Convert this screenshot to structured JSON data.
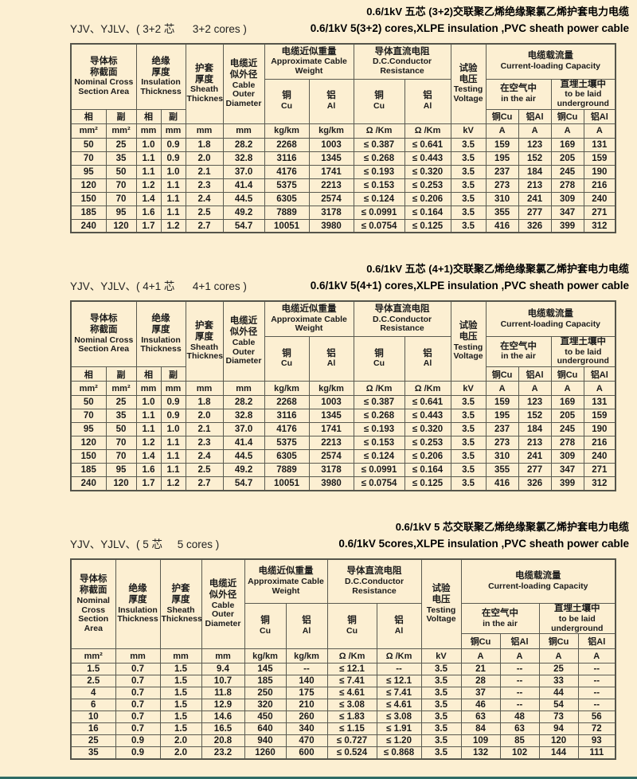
{
  "page": {
    "background": "#fcefd2",
    "bottom_bar_color": "#2e6b64"
  },
  "tables": [
    {
      "kind": "split",
      "title_cn": "0.6/1kV 五芯 (3+2)交联聚乙烯绝缘聚氯乙烯护套电力电缆",
      "title_en": "0.6/1kV 5(3+2) cores,XLPE insulation ,PVC sheath power cable",
      "model_label": "YJV、YJLV、( 3+2 芯      3+2 cores )",
      "header": {
        "ncsa_cn": "导体标\n称截面",
        "ncsa_en": "Nominal Cross Section Area",
        "phase": "相",
        "aux": "副",
        "insulation_cn": "绝缘\n厚度",
        "insulation_en": "Insulation Thickness",
        "sheath_cn": "护套\n厚度",
        "sheath_en": "Sheath Thickness",
        "outer_cn": "电缆近\n似外径",
        "outer_en": "Cable Outer Diameter",
        "weight_cn": "电缆近似重量",
        "weight_en": "Approximate Cable Weight",
        "resistance_cn": "导体直流电阻",
        "resistance_en": "D.C.Conductor Resistance",
        "testing_cn": "试验\n电压",
        "testing_en": "Testing Voltage",
        "capacity_cn": "电缆载流量",
        "capacity_en": "Current-loading Capacity",
        "air_cn": "在空气中",
        "air_en": "in the air",
        "underground_cn": "直埋土壤中",
        "underground_en": "to be laid underground",
        "cu_cn": "铜",
        "cu_en": "Cu",
        "al_cn": "铝",
        "al_en": "Al",
        "cu_inline": "铜Cu",
        "al_inline": "铝Al"
      },
      "units": [
        "mm²",
        "mm²",
        "mm",
        "mm",
        "mm",
        "mm",
        "kg/km",
        "kg/km",
        "Ω /Km",
        "Ω /Km",
        "kV",
        "A",
        "A",
        "A",
        "A"
      ],
      "rows": [
        [
          "50",
          "25",
          "1.0",
          "0.9",
          "1.8",
          "28.2",
          "2268",
          "1003",
          "≤ 0.387",
          "≤ 0.641",
          "3.5",
          "159",
          "123",
          "169",
          "131"
        ],
        [
          "70",
          "35",
          "1.1",
          "0.9",
          "2.0",
          "32.8",
          "3116",
          "1345",
          "≤ 0.268",
          "≤ 0.443",
          "3.5",
          "195",
          "152",
          "205",
          "159"
        ],
        [
          "95",
          "50",
          "1.1",
          "1.0",
          "2.1",
          "37.0",
          "4176",
          "1741",
          "≤ 0.193",
          "≤ 0.320",
          "3.5",
          "237",
          "184",
          "245",
          "190"
        ],
        [
          "120",
          "70",
          "1.2",
          "1.1",
          "2.3",
          "41.4",
          "5375",
          "2213",
          "≤ 0.153",
          "≤ 0.253",
          "3.5",
          "273",
          "213",
          "278",
          "216"
        ],
        [
          "150",
          "70",
          "1.4",
          "1.1",
          "2.4",
          "44.5",
          "6305",
          "2574",
          "≤ 0.124",
          "≤ 0.206",
          "3.5",
          "310",
          "241",
          "309",
          "240"
        ],
        [
          "185",
          "95",
          "1.6",
          "1.1",
          "2.5",
          "49.2",
          "7889",
          "3178",
          "≤ 0.0991",
          "≤ 0.164",
          "3.5",
          "355",
          "277",
          "347",
          "271"
        ],
        [
          "240",
          "120",
          "1.7",
          "1.2",
          "2.7",
          "54.7",
          "10051",
          "3980",
          "≤ 0.0754",
          "≤ 0.125",
          "3.5",
          "416",
          "326",
          "399",
          "312"
        ]
      ]
    },
    {
      "kind": "split",
      "title_cn": "0.6/1kV 五芯 (4+1)交联聚乙烯绝缘聚氯乙烯护套电力电缆",
      "title_en": "0.6/1kV 5(4+1) cores,XLPE insulation ,PVC sheath power cable",
      "model_label": "YJV、YJLV、( 4+1 芯      4+1 cores )",
      "header": {
        "ncsa_cn": "导体标\n称截面",
        "ncsa_en": "Nominal Cross Section Area",
        "phase": "相",
        "aux": "副",
        "insulation_cn": "绝缘\n厚度",
        "insulation_en": "Insulation Thickness",
        "sheath_cn": "护套\n厚度",
        "sheath_en": "Sheath Thickness",
        "outer_cn": "电缆近\n似外径",
        "outer_en": "Cable Outer Diameter",
        "weight_cn": "电缆近似重量",
        "weight_en": "Approximate Cable Weight",
        "resistance_cn": "导体直流电阻",
        "resistance_en": "D.C.Conductor Resistance",
        "testing_cn": "试验\n电压",
        "testing_en": "Testing Voltage",
        "capacity_cn": "电缆载流量",
        "capacity_en": "Current-loading Capacity",
        "air_cn": "在空气中",
        "air_en": "in the air",
        "underground_cn": "直埋土壤中",
        "underground_en": "to be laid underground",
        "cu_cn": "铜",
        "cu_en": "Cu",
        "al_cn": "铝",
        "al_en": "Al",
        "cu_inline": "铜Cu",
        "al_inline": "铝Al"
      },
      "units": [
        "mm²",
        "mm²",
        "mm",
        "mm",
        "mm",
        "mm",
        "kg/km",
        "kg/km",
        "Ω /Km",
        "Ω /Km",
        "kV",
        "A",
        "A",
        "A",
        "A"
      ],
      "rows": [
        [
          "50",
          "25",
          "1.0",
          "0.9",
          "1.8",
          "28.2",
          "2268",
          "1003",
          "≤ 0.387",
          "≤ 0.641",
          "3.5",
          "159",
          "123",
          "169",
          "131"
        ],
        [
          "70",
          "35",
          "1.1",
          "0.9",
          "2.0",
          "32.8",
          "3116",
          "1345",
          "≤ 0.268",
          "≤ 0.443",
          "3.5",
          "195",
          "152",
          "205",
          "159"
        ],
        [
          "95",
          "50",
          "1.1",
          "1.0",
          "2.1",
          "37.0",
          "4176",
          "1741",
          "≤ 0.193",
          "≤ 0.320",
          "3.5",
          "237",
          "184",
          "245",
          "190"
        ],
        [
          "120",
          "70",
          "1.2",
          "1.1",
          "2.3",
          "41.4",
          "5375",
          "2213",
          "≤ 0.153",
          "≤ 0.253",
          "3.5",
          "273",
          "213",
          "278",
          "216"
        ],
        [
          "150",
          "70",
          "1.4",
          "1.1",
          "2.4",
          "44.5",
          "6305",
          "2574",
          "≤ 0.124",
          "≤ 0.206",
          "3.5",
          "310",
          "241",
          "309",
          "240"
        ],
        [
          "185",
          "95",
          "1.6",
          "1.1",
          "2.5",
          "49.2",
          "7889",
          "3178",
          "≤ 0.0991",
          "≤ 0.164",
          "3.5",
          "355",
          "277",
          "347",
          "271"
        ],
        [
          "240",
          "120",
          "1.7",
          "1.2",
          "2.7",
          "54.7",
          "10051",
          "3980",
          "≤ 0.0754",
          "≤ 0.125",
          "3.5",
          "416",
          "326",
          "399",
          "312"
        ]
      ]
    },
    {
      "kind": "plain",
      "title_cn": "0.6/1kV 5 芯交联聚乙烯绝缘聚氯乙烯护套电力电缆",
      "title_en": "0.6/1kV 5cores,XLPE insulation ,PVC sheath power cable",
      "model_label": "YJV、YJLV、( 5 芯     5 cores )",
      "header": {
        "ncsa_cn": "导体标\n称截面",
        "ncsa_en": "Nominal Cross Section Area",
        "insulation_cn": "绝缘\n厚度",
        "insulation_en": "Insulation Thickness",
        "sheath_cn": "护套\n厚度",
        "sheath_en": "Sheath Thickness",
        "outer_cn": "电缆近\n似外径",
        "outer_en": "Cable Outer Diameter",
        "weight_cn": "电缆近似重量",
        "weight_en": "Approximate Cable Weight",
        "resistance_cn": "导体直流电阻",
        "resistance_en": "D.C.Conductor Resistance",
        "testing_cn": "试验\n电压",
        "testing_en": "Testing Voltage",
        "capacity_cn": "电缆载流量",
        "capacity_en": "Current-loading Capacity",
        "air_cn": "在空气中",
        "air_en": "in the air",
        "underground_cn": "直埋土壤中",
        "underground_en": "to be laid underground",
        "cu_cn": "铜",
        "cu_en": "Cu",
        "al_cn": "铝",
        "al_en": "Al",
        "cu_inline": "铜Cu",
        "al_inline": "铝Al"
      },
      "units": [
        "mm²",
        "mm",
        "mm",
        "mm",
        "kg/km",
        "kg/km",
        "Ω /Km",
        "Ω /Km",
        "kV",
        "A",
        "A",
        "A",
        "A"
      ],
      "rows": [
        [
          "1.5",
          "0.7",
          "1.5",
          "9.4",
          "145",
          "--",
          "≤ 12.1",
          "--",
          "3.5",
          "21",
          "--",
          "25",
          "--"
        ],
        [
          "2.5",
          "0.7",
          "1.5",
          "10.7",
          "185",
          "140",
          "≤ 7.41",
          "≤ 12.1",
          "3.5",
          "28",
          "--",
          "33",
          "--"
        ],
        [
          "4",
          "0.7",
          "1.5",
          "11.8",
          "250",
          "175",
          "≤ 4.61",
          "≤ 7.41",
          "3.5",
          "37",
          "--",
          "44",
          "--"
        ],
        [
          "6",
          "0.7",
          "1.5",
          "12.9",
          "320",
          "210",
          "≤ 3.08",
          "≤ 4.61",
          "3.5",
          "46",
          "--",
          "54",
          "--"
        ],
        [
          "10",
          "0.7",
          "1.5",
          "14.6",
          "450",
          "260",
          "≤ 1.83",
          "≤ 3.08",
          "3.5",
          "63",
          "48",
          "73",
          "56"
        ],
        [
          "16",
          "0.7",
          "1.5",
          "16.5",
          "640",
          "340",
          "≤ 1.15",
          "≤ 1.91",
          "3.5",
          "84",
          "63",
          "94",
          "72"
        ],
        [
          "25",
          "0.9",
          "2.0",
          "20.8",
          "940",
          "470",
          "≤ 0.727",
          "≤ 1.20",
          "3.5",
          "109",
          "85",
          "120",
          "93"
        ],
        [
          "35",
          "0.9",
          "2.0",
          "23.2",
          "1260",
          "600",
          "≤ 0.524",
          "≤ 0.868",
          "3.5",
          "132",
          "102",
          "144",
          "111"
        ]
      ]
    }
  ]
}
